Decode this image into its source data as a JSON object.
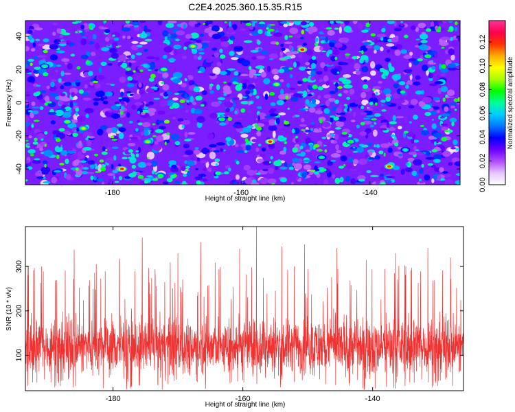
{
  "title": "C2E4.2025.360.15.35.R15",
  "chart_data": [
    {
      "type": "heatmap",
      "xlabel": "Height of straight line (km)",
      "ylabel": "Frequency (Hz)",
      "xlim": [
        -193.5,
        -126.0
      ],
      "ylim": [
        -49.5,
        49.5
      ],
      "xticks": [
        -180,
        -160,
        -140
      ],
      "yticks": [
        -40,
        -20,
        0,
        20,
        40
      ],
      "colorbar": {
        "label": "Normalized spectral amplitude",
        "range": [
          0,
          0.138
        ],
        "ticks": [
          0.0,
          0.02,
          0.04,
          0.06,
          0.08,
          0.1,
          0.12
        ],
        "colormap": [
          "#ffffff",
          "#e7c4ff",
          "#b04cff",
          "#6a00ff",
          "#0000ff",
          "#0078ff",
          "#00ccff",
          "#00ff9a",
          "#00ff00",
          "#a8ff00",
          "#ffff00",
          "#ffaa00",
          "#ff3300",
          "#ff0050",
          "#ff3399"
        ]
      },
      "description": "dense blob-like noise field, amplitudes mostly 0.03-0.06 with scattered peaks near 0.10-0.13",
      "peaks": [
        {
          "x": -150.5,
          "y": 32,
          "value": 0.128
        },
        {
          "x": -155.5,
          "y": -23.5,
          "value": 0.125
        },
        {
          "x": -178.5,
          "y": -40,
          "value": 0.124
        },
        {
          "x": -137,
          "y": -38.5,
          "value": 0.118
        },
        {
          "x": -184.5,
          "y": -15.5,
          "value": 0.095
        },
        {
          "x": -167.5,
          "y": 34,
          "value": 0.092
        },
        {
          "x": -174.5,
          "y": -23.5,
          "value": 0.09
        },
        {
          "x": -154.5,
          "y": 11,
          "value": 0.088
        },
        {
          "x": -172,
          "y": 20,
          "value": 0.085
        },
        {
          "x": -187,
          "y": -11.5,
          "value": 0.085
        },
        {
          "x": -143,
          "y": -23.5,
          "value": 0.08
        },
        {
          "x": -131,
          "y": 28,
          "value": 0.08
        },
        {
          "x": -163,
          "y": -10,
          "value": 0.078
        },
        {
          "x": -190.5,
          "y": 22,
          "value": 0.075
        },
        {
          "x": -147.5,
          "y": -33,
          "value": 0.072
        },
        {
          "x": -134.5,
          "y": -28.5,
          "value": 0.07
        }
      ]
    },
    {
      "type": "line",
      "xlabel": "Height of straight line (km)",
      "ylabel": "SNR (10 * v/v)",
      "xlim": [
        -193.5,
        -126.0
      ],
      "ylim": [
        20,
        390
      ],
      "xticks": [
        -180,
        -160,
        -140
      ],
      "yticks": [
        100,
        200,
        300
      ],
      "color": "#ee3333",
      "series_summary": {
        "baseline": 120,
        "typical_low": 60,
        "typical_high": 220,
        "max": 390,
        "min": 22
      },
      "spikes": [
        {
          "x": -157.9,
          "y": 390
        },
        {
          "x": -175.5,
          "y": 365
        },
        {
          "x": -166.5,
          "y": 355
        },
        {
          "x": -150.5,
          "y": 350
        },
        {
          "x": -186,
          "y": 338
        },
        {
          "x": -160.5,
          "y": 340
        },
        {
          "x": -145.5,
          "y": 342
        },
        {
          "x": -131.5,
          "y": 342
        },
        {
          "x": -179,
          "y": 318
        },
        {
          "x": -170,
          "y": 330
        },
        {
          "x": -154,
          "y": 345
        },
        {
          "x": -136.5,
          "y": 330
        },
        {
          "x": -128,
          "y": 320
        },
        {
          "x": -191,
          "y": 300
        },
        {
          "x": -141,
          "y": 315
        }
      ]
    }
  ]
}
